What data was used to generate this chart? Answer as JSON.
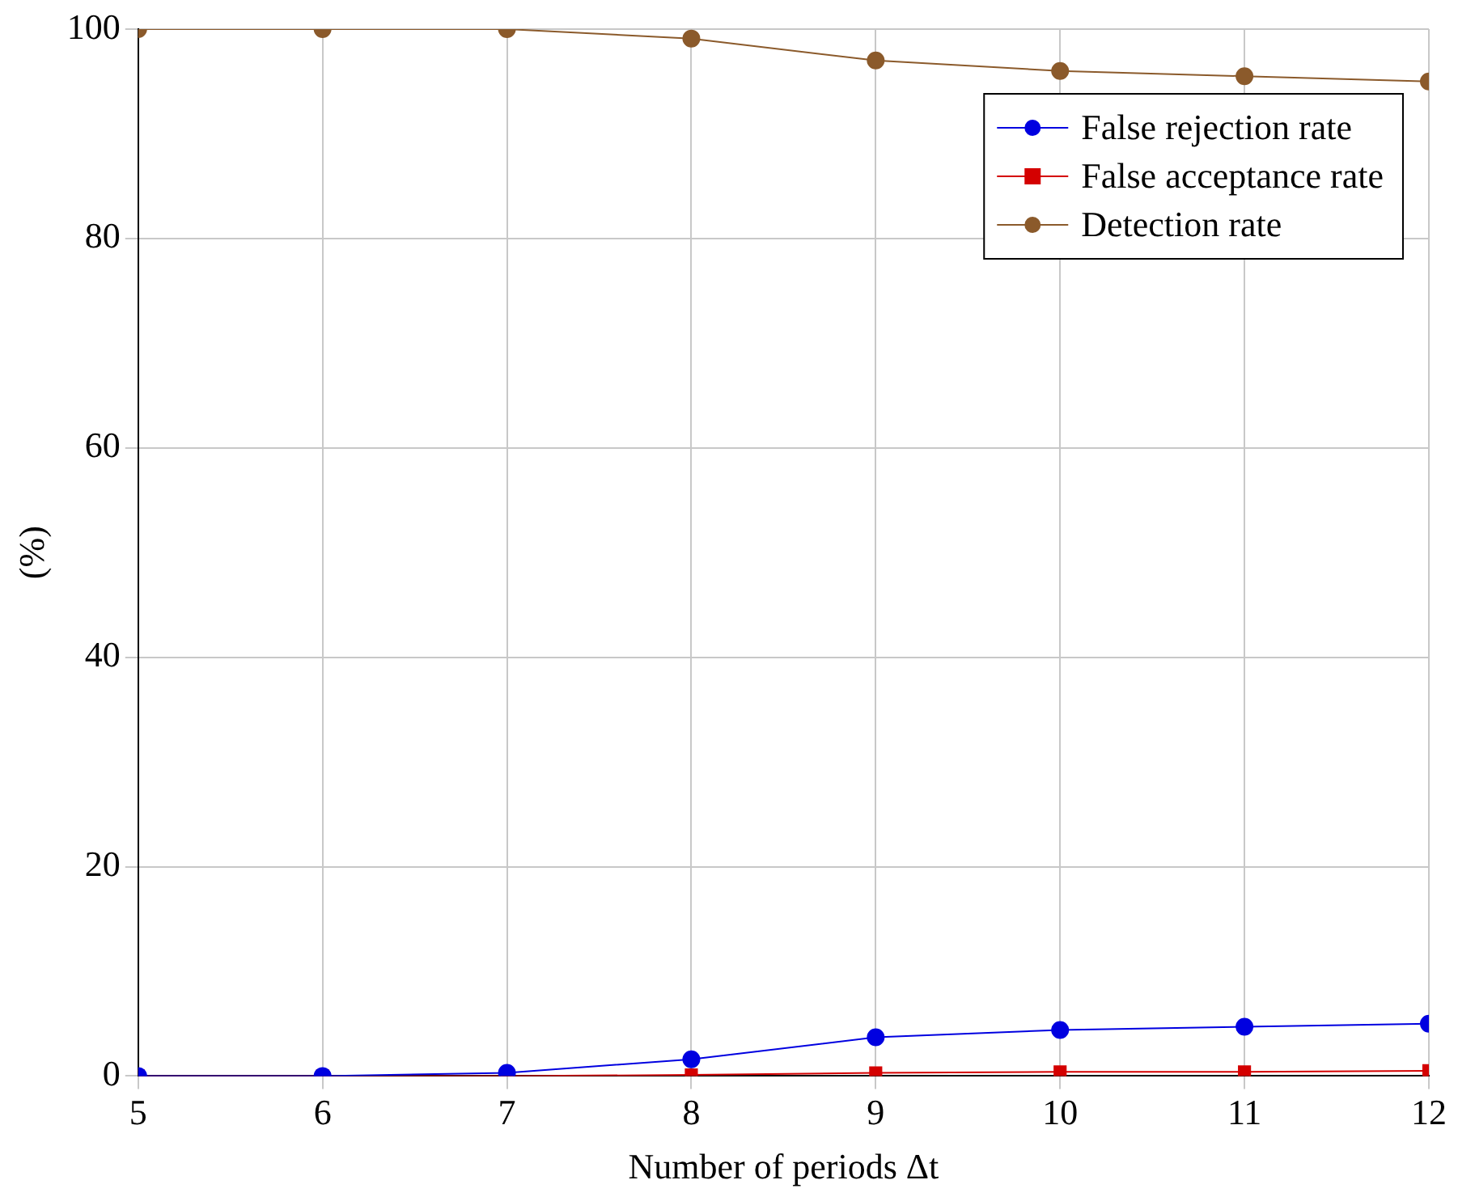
{
  "chart_data": {
    "type": "line",
    "xlabel": "Number of periods Δt",
    "ylabel": "(%)",
    "x": [
      5,
      6,
      7,
      8,
      9,
      10,
      11,
      12
    ],
    "xlim": [
      5,
      12
    ],
    "xticks": [
      5,
      6,
      7,
      8,
      9,
      10,
      11,
      12
    ],
    "ylim": [
      0,
      100
    ],
    "yticks": [
      0,
      20,
      40,
      60,
      80,
      100
    ],
    "grid": true,
    "legend": "top right",
    "line_style": "solid",
    "series": [
      {
        "name": "False rejection rate",
        "color": "#0000e0",
        "marker": "circle",
        "values": [
          0,
          0,
          0.3,
          1.6,
          3.7,
          4.4,
          4.7,
          5.0
        ]
      },
      {
        "name": "False acceptance rate",
        "color": "#d40000",
        "marker": "square",
        "values": [
          0,
          0,
          0,
          0.1,
          0.3,
          0.4,
          0.4,
          0.5
        ]
      },
      {
        "name": "Detection rate",
        "color": "#8b5a2b",
        "marker": "circle",
        "values": [
          100,
          100,
          100,
          99.1,
          97,
          96,
          95.5,
          95
        ]
      }
    ]
  }
}
